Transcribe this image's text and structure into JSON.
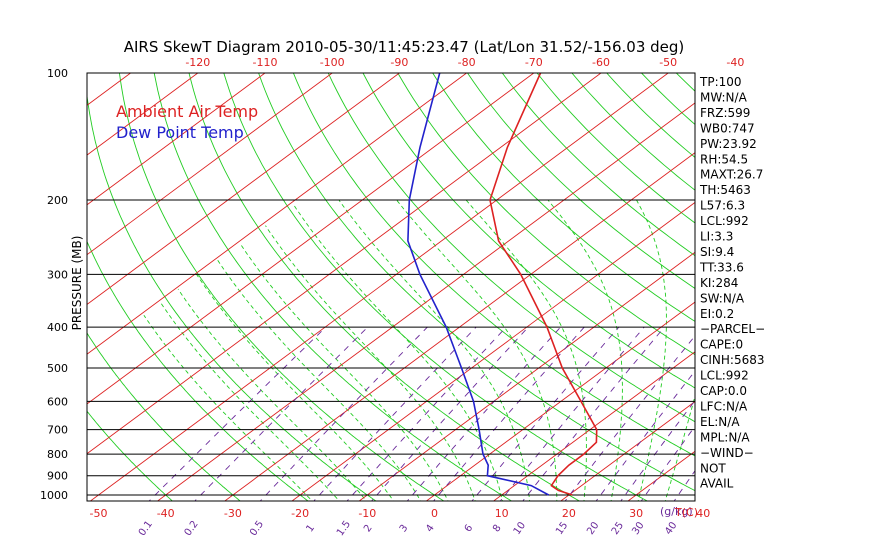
{
  "chart_data": {
    "type": "line",
    "title": "AIRS SkewT Diagram 2010-05-30/11:45:23.47 (Lat/Lon 31.52/-156.03 deg)",
    "ylabel": "PRESSURE (MB)",
    "xlabel_bottom_unit": "T(C)",
    "mixing_ratio_unit": "(g/kg)",
    "y_scale": "log",
    "ylim": [
      1000,
      100
    ],
    "xlim_bottom": [
      -50,
      40
    ],
    "pressure_ticks": [
      "100",
      "200",
      "300",
      "400",
      "500",
      "600",
      "700",
      "800",
      "900",
      "1000"
    ],
    "bottom_temp_ticks": [
      "-50",
      "-40",
      "-30",
      "-20",
      "-10",
      "0",
      "10",
      "20",
      "30",
      "40"
    ],
    "top_temp_ticks": [
      "-120",
      "-110",
      "-100",
      "-90",
      "-80",
      "-70",
      "-60",
      "-50",
      "-40"
    ],
    "mixing_ratio_labels": [
      "0.1",
      "0.2",
      "0.5",
      "1",
      "1.5",
      "2",
      "3",
      "4",
      "6",
      "8",
      "10",
      "15",
      "20",
      "25",
      "30",
      "40"
    ],
    "legend": [
      {
        "label": "Ambient Air Temp",
        "color": "#dd2222"
      },
      {
        "label": "Dew Point Temp",
        "color": "#2222cc"
      }
    ],
    "series": [
      {
        "name": "Ambient Air Temp",
        "color": "#dd2222",
        "points": [
          {
            "p": 1000,
            "t": 20.5
          },
          {
            "p": 975,
            "t": 17.5
          },
          {
            "p": 950,
            "t": 15.5
          },
          {
            "p": 900,
            "t": 14.5
          },
          {
            "p": 850,
            "t": 14.0
          },
          {
            "p": 800,
            "t": 14.0
          },
          {
            "p": 750,
            "t": 13.5
          },
          {
            "p": 700,
            "t": 11.0
          },
          {
            "p": 600,
            "t": 3.0
          },
          {
            "p": 500,
            "t": -6.5
          },
          {
            "p": 400,
            "t": -17.0
          },
          {
            "p": 300,
            "t": -31.5
          },
          {
            "p": 250,
            "t": -41.5
          },
          {
            "p": 200,
            "t": -51.0
          },
          {
            "p": 150,
            "t": -59.0
          },
          {
            "p": 100,
            "t": -69.0
          }
        ]
      },
      {
        "name": "Dew Point Temp",
        "color": "#2222cc",
        "points": [
          {
            "p": 1000,
            "t": 17.0
          },
          {
            "p": 950,
            "t": 12.5
          },
          {
            "p": 900,
            "t": 4.0
          },
          {
            "p": 850,
            "t": 2.0
          },
          {
            "p": 800,
            "t": -1.0
          },
          {
            "p": 700,
            "t": -6.5
          },
          {
            "p": 600,
            "t": -13.0
          },
          {
            "p": 500,
            "t": -21.5
          },
          {
            "p": 400,
            "t": -32.0
          },
          {
            "p": 300,
            "t": -46.5
          },
          {
            "p": 250,
            "t": -55.0
          },
          {
            "p": 200,
            "t": -63.0
          },
          {
            "p": 150,
            "t": -72.0
          },
          {
            "p": 100,
            "t": -84.0
          }
        ]
      }
    ],
    "indices": [
      "TP:100",
      "MW:N/A",
      "FRZ:599",
      "WB0:747",
      "PW:23.92",
      "RH:54.5",
      "MAXT:26.7",
      "TH:5463",
      "L57:6.3",
      "LCL:992",
      "LI:3.3",
      "SI:9.4",
      "TT:33.6",
      "KI:284",
      "SW:N/A",
      "EI:0.2",
      "−PARCEL−",
      "CAPE:0",
      "CINH:5683",
      "LCL:992",
      "CAP:0.0",
      "LFC:N/A",
      "EL:N/A",
      "MPL:N/A",
      "−WIND−",
      "NOT",
      "AVAIL"
    ],
    "colors": {
      "frame": "#000000",
      "isotherm": "#dd2222",
      "dry_adiabat": "#22cc22",
      "moist_adiabat": "#22cc22",
      "mixing_ratio": "#6a2a9a",
      "temp_ticks": "#dd2222",
      "mixing_labels": "#6a2a9a"
    }
  }
}
